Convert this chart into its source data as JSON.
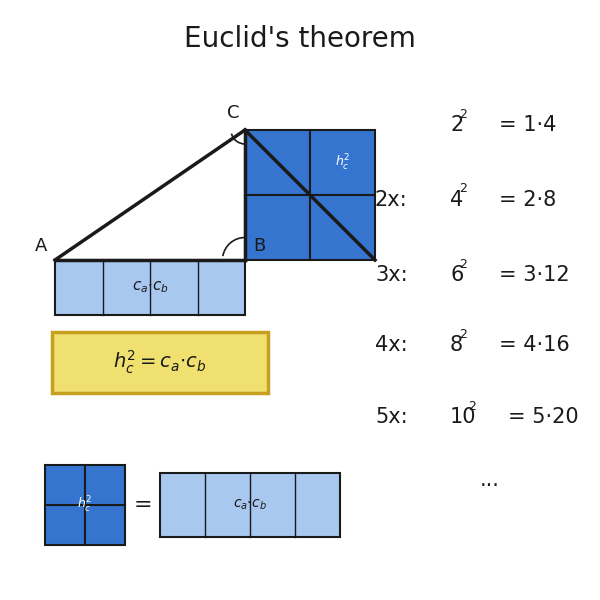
{
  "title": "Euclid's theorem",
  "title_fontsize": 20,
  "bg_color": "#ffffff",
  "light_blue": "#a8c8f0",
  "dark_blue": "#3575d0",
  "yellow": "#f0e070",
  "yellow_border": "#c8a020",
  "black": "#1a1a1a",
  "rows": [
    {
      "prefix": "",
      "base": "2",
      "exp": "2",
      "eq": "= 1·4"
    },
    {
      "prefix": "2x:",
      "base": "4",
      "exp": "2",
      "eq": "= 2·8"
    },
    {
      "prefix": "3x:",
      "base": "6",
      "exp": "2",
      "eq": "= 3·12"
    },
    {
      "prefix": "4x:",
      "base": "8",
      "exp": "2",
      "eq": "= 4·16"
    },
    {
      "prefix": "5x:",
      "base": "10",
      "exp": "2",
      "eq": "= 5·20"
    }
  ],
  "dots": "..."
}
